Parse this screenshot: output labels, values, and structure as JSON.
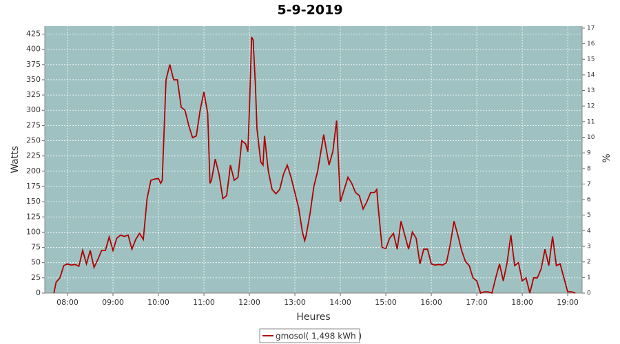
{
  "chart_data": {
    "type": "line",
    "title": "5-9-2019",
    "xlabel": "Heures",
    "ylabel": "Watts",
    "y2label": "%",
    "x": [
      "07:42",
      "07:45",
      "07:50",
      "07:55",
      "08:00",
      "08:05",
      "08:10",
      "08:15",
      "08:20",
      "08:25",
      "08:30",
      "08:35",
      "08:40",
      "08:45",
      "08:50",
      "08:55",
      "09:00",
      "09:05",
      "09:10",
      "09:15",
      "09:20",
      "09:25",
      "09:30",
      "09:35",
      "09:40",
      "09:45",
      "09:50",
      "09:55",
      "10:00",
      "10:03",
      "10:05",
      "10:10",
      "10:15",
      "10:20",
      "10:25",
      "10:30",
      "10:35",
      "10:40",
      "10:45",
      "10:50",
      "10:55",
      "11:00",
      "11:05",
      "11:08",
      "11:10",
      "11:15",
      "11:20",
      "11:25",
      "11:30",
      "11:35",
      "11:40",
      "11:45",
      "11:50",
      "11:55",
      "11:58",
      "12:00",
      "12:03",
      "12:05",
      "12:08",
      "12:10",
      "12:15",
      "12:18",
      "12:20",
      "12:25",
      "12:30",
      "12:35",
      "12:40",
      "12:45",
      "12:50",
      "12:55",
      "13:00",
      "13:05",
      "13:10",
      "13:13",
      "13:15",
      "13:20",
      "13:25",
      "13:30",
      "13:38",
      "13:45",
      "13:50",
      "13:55",
      "14:00",
      "14:05",
      "14:10",
      "14:15",
      "14:20",
      "14:25",
      "14:30",
      "14:35",
      "14:40",
      "14:45",
      "14:48",
      "14:50",
      "14:55",
      "15:00",
      "15:05",
      "15:10",
      "15:15",
      "15:20",
      "15:25",
      "15:30",
      "15:35",
      "15:40",
      "15:45",
      "15:50",
      "15:55",
      "16:00",
      "16:05",
      "16:10",
      "16:15",
      "16:20",
      "16:25",
      "16:30",
      "16:35",
      "16:40",
      "16:45",
      "16:50",
      "16:55",
      "17:00",
      "17:05",
      "17:10",
      "17:15",
      "17:20",
      "17:25",
      "17:30",
      "17:35",
      "17:40",
      "17:45",
      "17:50",
      "17:55",
      "18:00",
      "18:05",
      "18:10",
      "18:15",
      "18:20",
      "18:25",
      "18:30",
      "18:35",
      "18:40",
      "18:45",
      "18:50",
      "18:55",
      "19:00",
      "19:05",
      "19:10"
    ],
    "series": [
      {
        "name": "gmosol( 1,498 kWh )",
        "color": "#b00000",
        "values": [
          0,
          18,
          25,
          45,
          48,
          46,
          47,
          44,
          70,
          48,
          70,
          42,
          55,
          70,
          70,
          92,
          70,
          90,
          95,
          93,
          95,
          72,
          88,
          98,
          88,
          155,
          185,
          187,
          188,
          180,
          185,
          350,
          375,
          350,
          350,
          305,
          300,
          275,
          255,
          258,
          300,
          330,
          295,
          180,
          185,
          220,
          195,
          155,
          160,
          210,
          185,
          190,
          250,
          245,
          232,
          300,
          420,
          415,
          340,
          270,
          215,
          210,
          258,
          200,
          170,
          163,
          170,
          195,
          210,
          190,
          165,
          140,
          100,
          86,
          95,
          130,
          175,
          200,
          260,
          210,
          232,
          283,
          150,
          170,
          190,
          180,
          165,
          160,
          138,
          150,
          165,
          165,
          170,
          140,
          75,
          73,
          90,
          98,
          72,
          118,
          95,
          72,
          100,
          90,
          48,
          72,
          72,
          48,
          46,
          47,
          46,
          50,
          80,
          118,
          95,
          70,
          52,
          45,
          25,
          20,
          0,
          2,
          2,
          0,
          25,
          48,
          20,
          50,
          95,
          45,
          50,
          20,
          25,
          0,
          25,
          25,
          40,
          72,
          45,
          93,
          45,
          48,
          25,
          2,
          2,
          0
        ]
      }
    ],
    "xlim": [
      "07:30",
      "19:19"
    ],
    "xticks": [
      "08:00",
      "09:00",
      "10:00",
      "11:00",
      "12:00",
      "13:00",
      "14:00",
      "15:00",
      "16:00",
      "17:00",
      "18:00",
      "19:00"
    ],
    "ylim": [
      0,
      438
    ],
    "yticks": [
      0,
      25,
      50,
      75,
      100,
      125,
      150,
      175,
      200,
      225,
      250,
      275,
      300,
      325,
      350,
      375,
      400,
      425
    ],
    "y2lim": [
      0,
      17.13
    ],
    "y2ticks": [
      0,
      1,
      2,
      3,
      4,
      5,
      6,
      7,
      8,
      9,
      10,
      11,
      12,
      13,
      14,
      15,
      16,
      17
    ],
    "grid": true,
    "plot_background": "#9fc1c1"
  }
}
